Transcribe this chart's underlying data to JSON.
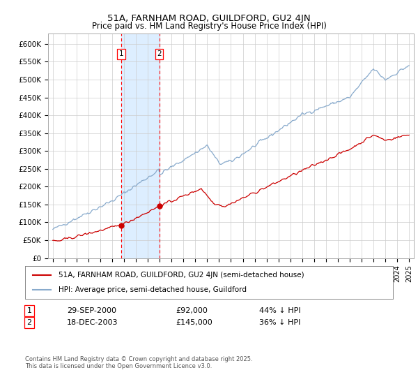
{
  "title": "51A, FARNHAM ROAD, GUILDFORD, GU2 4JN",
  "subtitle": "Price paid vs. HM Land Registry's House Price Index (HPI)",
  "ylim": [
    0,
    620000
  ],
  "xlim_start": 1994.6,
  "xlim_end": 2025.4,
  "t1_x": 2000.75,
  "t1_price": 92000,
  "t2_x": 2003.96,
  "t2_price": 145000,
  "legend_property": "51A, FARNHAM ROAD, GUILDFORD, GU2 4JN (semi-detached house)",
  "legend_hpi": "HPI: Average price, semi-detached house, Guildford",
  "footer": "Contains HM Land Registry data © Crown copyright and database right 2025.\nThis data is licensed under the Open Government Licence v3.0.",
  "property_color": "#cc0000",
  "hpi_color": "#88aacc",
  "background_color": "#ffffff",
  "grid_color": "#cccccc",
  "highlight_color": "#ddeeff",
  "row1_num": "1",
  "row1_date": "29-SEP-2000",
  "row1_price": "£92,000",
  "row1_hpi": "44% ↓ HPI",
  "row2_num": "2",
  "row2_date": "18-DEC-2003",
  "row2_price": "£145,000",
  "row2_hpi": "36% ↓ HPI"
}
